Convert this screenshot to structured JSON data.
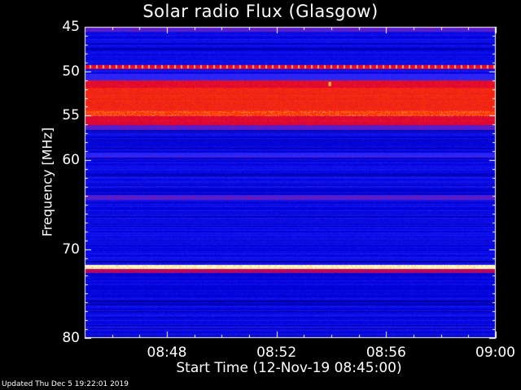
{
  "chart_data": {
    "type": "heatmap",
    "title": "Solar radio Flux (Glasgow)",
    "xlabel": "Start Time (12-Nov-19 08:45:00)",
    "ylabel": "Frequency [MHz]",
    "xlim_minutes": [
      "08:45",
      "09:00"
    ],
    "ylim": [
      45,
      80
    ],
    "y_inverted": true,
    "x_ticks": [
      "08:48",
      "08:52",
      "08:56",
      "09:00"
    ],
    "x_tick_minutes": [
      3,
      7,
      11,
      15
    ],
    "y_ticks": [
      45,
      50,
      55,
      60,
      70,
      80
    ],
    "colormap": "blue-red-yellow",
    "background_color": "#1c1ee6",
    "bands": [
      {
        "freq_from": 45.0,
        "freq_to": 45.5,
        "intensity": 0.55
      },
      {
        "freq_from": 49.3,
        "freq_to": 49.7,
        "intensity": 0.75
      },
      {
        "freq_from": 50.3,
        "freq_to": 51.0,
        "intensity": 0.5
      },
      {
        "freq_from": 51.0,
        "freq_to": 51.8,
        "intensity": 0.75
      },
      {
        "freq_from": 51.8,
        "freq_to": 54.4,
        "intensity": 0.82
      },
      {
        "freq_from": 54.4,
        "freq_to": 55.0,
        "intensity": 0.9
      },
      {
        "freq_from": 55.0,
        "freq_to": 56.0,
        "intensity": 0.72
      },
      {
        "freq_from": 56.0,
        "freq_to": 56.6,
        "intensity": 0.55
      },
      {
        "freq_from": 59.2,
        "freq_to": 59.7,
        "intensity": 0.5
      },
      {
        "freq_from": 63.9,
        "freq_to": 64.5,
        "intensity": 0.55
      },
      {
        "freq_from": 71.8,
        "freq_to": 72.3,
        "intensity": 1.0
      },
      {
        "freq_from": 72.3,
        "freq_to": 72.7,
        "intensity": 0.65
      }
    ],
    "grid": false
  },
  "footer": "Updated Thu Dec  5 19:22:01 2019"
}
